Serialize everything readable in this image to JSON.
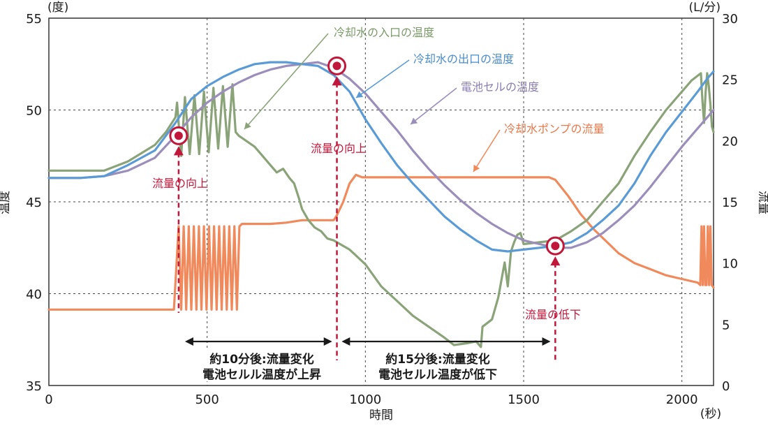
{
  "chart_data": {
    "type": "line",
    "xlabel": "時間",
    "x_unit": "(秒)",
    "ylabel_left": "温度",
    "y_unit_left": "(度)",
    "ylabel_right": "流量",
    "y_unit_right": "(L/分)",
    "xlim": [
      0,
      2100
    ],
    "ylim_left": [
      35,
      55
    ],
    "ylim_right": [
      0,
      30
    ],
    "xticks": [
      0,
      500,
      1000,
      1500,
      2000
    ],
    "yticks_left": [
      35,
      40,
      45,
      50,
      55
    ],
    "yticks_right": [
      0,
      5,
      10,
      15,
      20,
      25,
      30
    ],
    "grid": true,
    "series": [
      {
        "name": "冷却水の入口の温度",
        "axis": "left",
        "color": "#8aa378",
        "x": [
          0,
          100,
          175,
          250,
          335,
          370,
          400,
          405,
          418,
          430,
          445,
          460,
          475,
          490,
          505,
          520,
          535,
          550,
          565,
          580,
          590,
          600,
          650,
          700,
          720,
          740,
          760,
          775,
          790,
          800,
          820,
          840,
          860,
          880,
          900,
          950,
          1000,
          1050,
          1100,
          1150,
          1200,
          1250,
          1280,
          1320,
          1350,
          1365,
          1370,
          1400,
          1420,
          1440,
          1450,
          1460,
          1470,
          1480,
          1490,
          1500,
          1550,
          1600,
          1650,
          1700,
          1750,
          1800,
          1850,
          1900,
          1950,
          2000,
          2030,
          2060,
          2065,
          2070,
          2075,
          2080,
          2085,
          2090,
          2095,
          2100
        ],
        "y": [
          46.7,
          46.7,
          46.7,
          47.2,
          48.1,
          48.8,
          49.6,
          50.4,
          47.5,
          50.7,
          47.6,
          50.8,
          47.6,
          51.0,
          47.7,
          51.2,
          47.9,
          51.3,
          48.0,
          51.4,
          48.8,
          48.6,
          48.0,
          47.0,
          46.6,
          46.8,
          46.3,
          46.0,
          45.2,
          44.6,
          44.0,
          43.6,
          43.4,
          43.0,
          42.9,
          42.4,
          41.6,
          40.4,
          39.6,
          38.8,
          38.2,
          37.6,
          37.2,
          37.3,
          37.4,
          37.1,
          38.2,
          38.6,
          39.8,
          41.7,
          40.4,
          42.3,
          42.8,
          43.2,
          43.3,
          42.7,
          42.8,
          42.9,
          43.4,
          44.0,
          45.0,
          46.0,
          47.5,
          48.8,
          50.0,
          51.0,
          51.6,
          52.0,
          50.5,
          49.3,
          51.0,
          52.0,
          51.3,
          50.3,
          49.1,
          48.8
        ]
      },
      {
        "name": "冷却水の出口の温度",
        "axis": "left",
        "color": "#5b9bd5",
        "x": [
          0,
          100,
          175,
          250,
          335,
          400,
          450,
          500,
          550,
          600,
          650,
          700,
          750,
          800,
          850,
          900,
          950,
          1000,
          1050,
          1100,
          1150,
          1200,
          1250,
          1300,
          1350,
          1400,
          1450,
          1500,
          1550,
          1600,
          1650,
          1700,
          1750,
          1800,
          1850,
          1900,
          1950,
          2000,
          2050,
          2080,
          2100
        ],
        "y": [
          46.3,
          46.3,
          46.4,
          47.0,
          47.8,
          49.3,
          50.6,
          51.3,
          51.8,
          52.2,
          52.5,
          52.6,
          52.6,
          52.5,
          52.4,
          51.9,
          51.0,
          49.5,
          48.2,
          47.0,
          46.0,
          45.1,
          44.2,
          43.5,
          42.9,
          42.4,
          42.3,
          42.4,
          42.5,
          42.6,
          42.8,
          43.3,
          44.0,
          44.8,
          46.0,
          47.5,
          48.8,
          49.9,
          51.0,
          51.7,
          52.1
        ]
      },
      {
        "name": "電池セルの温度",
        "axis": "left",
        "color": "#9b8ebb",
        "x": [
          0,
          100,
          175,
          250,
          335,
          400,
          450,
          500,
          550,
          600,
          650,
          700,
          750,
          800,
          850,
          900,
          950,
          1000,
          1050,
          1100,
          1150,
          1200,
          1250,
          1300,
          1350,
          1400,
          1450,
          1500,
          1550,
          1600,
          1650,
          1700,
          1750,
          1800,
          1850,
          1900,
          1950,
          2000,
          2050,
          2100
        ],
        "y": [
          46.3,
          46.3,
          46.4,
          46.7,
          47.4,
          48.6,
          49.6,
          50.4,
          51.0,
          51.5,
          51.9,
          52.2,
          52.4,
          52.5,
          52.6,
          52.3,
          51.7,
          50.9,
          49.9,
          48.9,
          47.8,
          46.8,
          45.9,
          45.1,
          44.4,
          43.8,
          43.3,
          42.9,
          42.7,
          42.5,
          42.5,
          42.8,
          43.3,
          44.0,
          44.8,
          45.8,
          46.9,
          48.0,
          49.0,
          50.0
        ]
      },
      {
        "name": "冷却水ポンプの流量",
        "axis": "right",
        "color": "#f08a5c",
        "x": [
          0,
          100,
          200,
          300,
          395,
          410,
          418,
          426,
          434,
          442,
          450,
          458,
          466,
          474,
          482,
          490,
          498,
          506,
          514,
          522,
          530,
          538,
          546,
          554,
          562,
          570,
          578,
          586,
          594,
          602,
          610,
          700,
          750,
          800,
          850,
          900,
          910,
          930,
          950,
          970,
          990,
          1000,
          1200,
          1400,
          1580,
          1600,
          1640,
          1680,
          1720,
          1760,
          1800,
          1850,
          1900,
          1950,
          2000,
          2050,
          2058,
          2062,
          2066,
          2070,
          2074,
          2078,
          2082,
          2086,
          2090,
          2094,
          2100
        ],
        "y": [
          6.2,
          6.2,
          6.2,
          6.2,
          6.2,
          13.0,
          6.2,
          13.0,
          6.2,
          13.0,
          6.2,
          13.0,
          6.2,
          13.0,
          6.2,
          13.0,
          6.2,
          13.0,
          6.2,
          13.0,
          6.2,
          13.0,
          6.2,
          13.0,
          6.2,
          13.0,
          6.2,
          13.0,
          6.2,
          13.0,
          13.2,
          13.2,
          13.3,
          13.5,
          13.5,
          13.5,
          13.9,
          15.0,
          16.5,
          17.2,
          17.0,
          17.0,
          17.0,
          17.0,
          17.0,
          16.8,
          15.5,
          14.0,
          12.8,
          11.8,
          10.8,
          10.0,
          9.5,
          9.0,
          8.7,
          8.4,
          8.2,
          13.0,
          8.2,
          13.0,
          8.2,
          8.2,
          13.0,
          8.2,
          13.0,
          8.2,
          8.0
        ]
      }
    ],
    "series_labels": [
      "冷却水の入口の温度",
      "冷却水の出口の温度",
      "電池セルの温度",
      "冷却水ポンプの流量"
    ],
    "markers": [
      {
        "x": 410,
        "y": 48.6,
        "label": "流量の向上"
      },
      {
        "x": 910,
        "y": 52.4,
        "label": "流量の向上"
      },
      {
        "x": 1600,
        "y": 42.6,
        "label": "流量の低下"
      }
    ],
    "spans": [
      {
        "from": 430,
        "to": 895,
        "line1": "約10分後:流量変化",
        "line2": "電池セルル温度が上昇"
      },
      {
        "from": 925,
        "to": 1585,
        "line1": "約15分後:流量変化",
        "line2": "電池セルル温度が低下"
      }
    ],
    "colors": {
      "marker": "#c0173a",
      "arrow": "#1a1a1a",
      "grid": "#444444"
    }
  }
}
